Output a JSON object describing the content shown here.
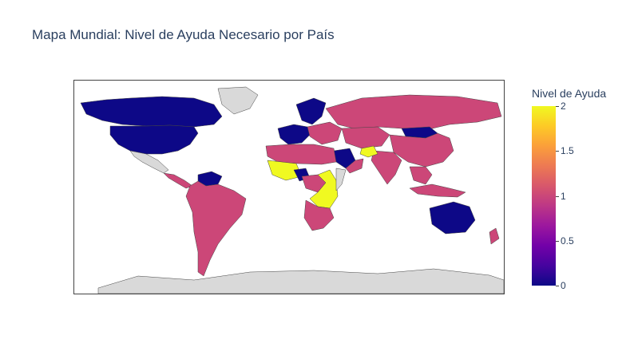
{
  "title": "Mapa Mundial: Nivel de Ayuda Necesario por País",
  "colorbar": {
    "title": "Nivel de Ayuda",
    "range": [
      0,
      2
    ],
    "ticks": [
      "0",
      "0.5",
      "1",
      "1.5",
      "2"
    ],
    "colorscale": [
      "#0d0887",
      "#46039f",
      "#7201a8",
      "#9c179e",
      "#bd3786",
      "#d8576b",
      "#ed7953",
      "#fb9f3a",
      "#fdca26",
      "#f0f921"
    ]
  },
  "colors": {
    "no_data": "#d9d9d9",
    "level_0": "#0d0887",
    "level_1": "#cc4778",
    "level_2": "#f0f921"
  },
  "chart_data": {
    "type": "choropleth",
    "projection": "equirectangular",
    "value_label": "Nivel de Ayuda",
    "regions": [
      {
        "region": "Canada",
        "value": 0
      },
      {
        "region": "United States",
        "value": 0
      },
      {
        "region": "Greenland",
        "value": null
      },
      {
        "region": "Mexico",
        "value": null
      },
      {
        "region": "Central America",
        "value": 1
      },
      {
        "region": "Venezuela",
        "value": 0
      },
      {
        "region": "South America",
        "value": 1
      },
      {
        "region": "Western Europe",
        "value": 0
      },
      {
        "region": "Scandinavia",
        "value": 0
      },
      {
        "region": "Eastern Europe",
        "value": 1
      },
      {
        "region": "Russia",
        "value": 1
      },
      {
        "region": "Central Asia",
        "value": 1
      },
      {
        "region": "Mongolia",
        "value": 0
      },
      {
        "region": "China",
        "value": 1
      },
      {
        "region": "India",
        "value": 1
      },
      {
        "region": "Saudi Arabia",
        "value": 0
      },
      {
        "region": "Yemen/Oman",
        "value": 1
      },
      {
        "region": "Afghanistan",
        "value": 2
      },
      {
        "region": "North Africa",
        "value": 1
      },
      {
        "region": "West Africa",
        "value": 2
      },
      {
        "region": "Nigeria",
        "value": 0
      },
      {
        "region": "Central Africa",
        "value": 1
      },
      {
        "region": "East Africa",
        "value": 2
      },
      {
        "region": "Somalia",
        "value": null
      },
      {
        "region": "Southern Africa",
        "value": 1
      },
      {
        "region": "Southeast Asia",
        "value": 1
      },
      {
        "region": "Indonesia",
        "value": 1
      },
      {
        "region": "Australia",
        "value": 0
      },
      {
        "region": "New Zealand",
        "value": 1
      },
      {
        "region": "Antarctica",
        "value": null
      }
    ]
  }
}
